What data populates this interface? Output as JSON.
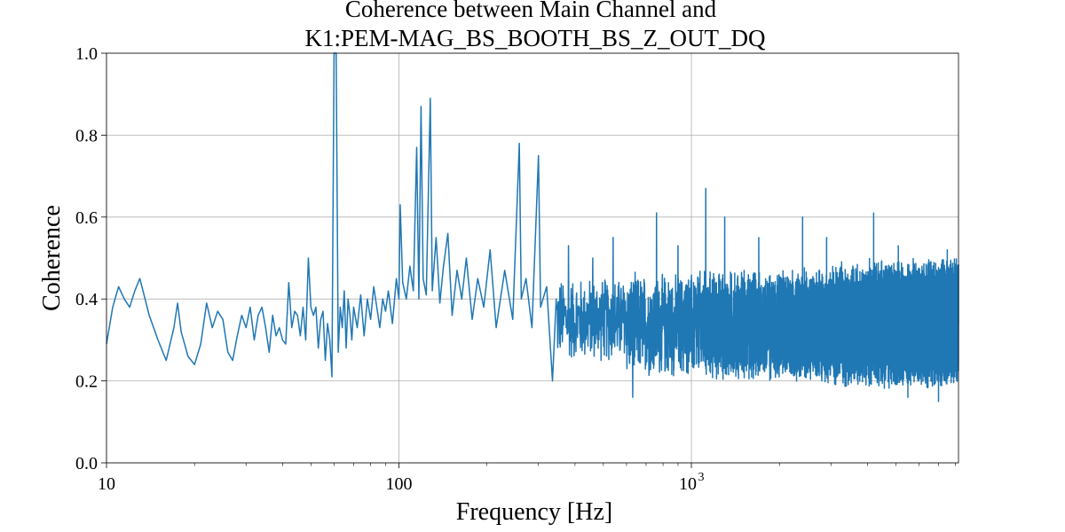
{
  "chart_data": {
    "type": "line",
    "title": [
      "Coherence between Main Channel and",
      "K1:PEM-MAG_BS_BOOTH_BS_Z_OUT_DQ"
    ],
    "xlabel": "Frequency [Hz]",
    "ylabel": "Coherence",
    "xscale": "log",
    "xlim": [
      10,
      8192
    ],
    "ylim": [
      0.0,
      1.0
    ],
    "grid": true,
    "xticks": [
      {
        "value": 10,
        "label": "10"
      },
      {
        "value": 100,
        "label": "100"
      },
      {
        "value": 1000,
        "label": "10",
        "exp": "3"
      }
    ],
    "yticks": [
      {
        "value": 0.0,
        "label": "0.0"
      },
      {
        "value": 0.2,
        "label": "0.2"
      },
      {
        "value": 0.4,
        "label": "0.4"
      },
      {
        "value": 0.6,
        "label": "0.6"
      },
      {
        "value": 0.8,
        "label": "0.8"
      },
      {
        "value": 1.0,
        "label": "1.0"
      }
    ],
    "series": [
      {
        "color": "#1f77b4",
        "description": "Coherence vs frequency, sampled at 1 Hz resolution; values estimated from the plot",
        "points": [
          [
            10,
            0.29
          ],
          [
            10.5,
            0.38
          ],
          [
            11,
            0.43
          ],
          [
            11.5,
            0.4
          ],
          [
            12,
            0.38
          ],
          [
            12.5,
            0.42
          ],
          [
            13,
            0.45
          ],
          [
            14,
            0.36
          ],
          [
            15,
            0.3
          ],
          [
            16,
            0.25
          ],
          [
            17,
            0.33
          ],
          [
            17.5,
            0.39
          ],
          [
            18,
            0.32
          ],
          [
            19,
            0.26
          ],
          [
            20,
            0.24
          ],
          [
            21,
            0.29
          ],
          [
            22,
            0.39
          ],
          [
            23,
            0.33
          ],
          [
            24,
            0.37
          ],
          [
            25,
            0.35
          ],
          [
            26,
            0.27
          ],
          [
            27,
            0.25
          ],
          [
            28,
            0.31
          ],
          [
            29,
            0.36
          ],
          [
            30,
            0.33
          ],
          [
            31,
            0.38
          ],
          [
            32,
            0.3
          ],
          [
            33,
            0.36
          ],
          [
            34,
            0.38
          ],
          [
            35,
            0.33
          ],
          [
            36,
            0.27
          ],
          [
            37,
            0.36
          ],
          [
            38,
            0.31
          ],
          [
            39,
            0.33
          ],
          [
            40,
            0.3
          ],
          [
            41,
            0.29
          ],
          [
            42,
            0.44
          ],
          [
            43,
            0.33
          ],
          [
            44,
            0.37
          ],
          [
            45,
            0.36
          ],
          [
            46,
            0.31
          ],
          [
            47,
            0.38
          ],
          [
            48,
            0.3
          ],
          [
            49,
            0.5
          ],
          [
            50,
            0.38
          ],
          [
            51,
            0.36
          ],
          [
            52,
            0.38
          ],
          [
            53,
            0.28
          ],
          [
            54,
            0.35
          ],
          [
            55,
            0.37
          ],
          [
            56,
            0.25
          ],
          [
            57,
            0.34
          ],
          [
            58,
            0.3
          ],
          [
            59,
            0.21
          ],
          [
            60,
            1.0
          ],
          [
            61,
            1.0
          ],
          [
            62,
            0.27
          ],
          [
            63,
            0.38
          ],
          [
            64,
            0.33
          ],
          [
            65,
            0.42
          ],
          [
            66,
            0.28
          ],
          [
            67,
            0.4
          ],
          [
            68,
            0.36
          ],
          [
            69,
            0.3
          ],
          [
            70,
            0.38
          ],
          [
            72,
            0.33
          ],
          [
            74,
            0.41
          ],
          [
            76,
            0.31
          ],
          [
            78,
            0.4
          ],
          [
            80,
            0.35
          ],
          [
            82,
            0.43
          ],
          [
            84,
            0.38
          ],
          [
            86,
            0.33
          ],
          [
            88,
            0.4
          ],
          [
            90,
            0.37
          ],
          [
            92,
            0.42
          ],
          [
            95,
            0.34
          ],
          [
            98,
            0.45
          ],
          [
            100,
            0.4
          ],
          [
            101,
            0.63
          ],
          [
            103,
            0.44
          ],
          [
            106,
            0.4
          ],
          [
            109,
            0.48
          ],
          [
            112,
            0.42
          ],
          [
            115,
            0.77
          ],
          [
            117,
            0.4
          ],
          [
            119,
            0.87
          ],
          [
            121,
            0.45
          ],
          [
            124,
            0.41
          ],
          [
            128,
            0.89
          ],
          [
            130,
            0.42
          ],
          [
            134,
            0.55
          ],
          [
            138,
            0.39
          ],
          [
            142,
            0.48
          ],
          [
            147,
            0.56
          ],
          [
            152,
            0.36
          ],
          [
            158,
            0.47
          ],
          [
            164,
            0.4
          ],
          [
            170,
            0.5
          ],
          [
            178,
            0.35
          ],
          [
            186,
            0.45
          ],
          [
            195,
            0.38
          ],
          [
            205,
            0.52
          ],
          [
            215,
            0.33
          ],
          [
            230,
            0.47
          ],
          [
            245,
            0.35
          ],
          [
            258,
            0.78
          ],
          [
            262,
            0.4
          ],
          [
            272,
            0.45
          ],
          [
            285,
            0.33
          ],
          [
            300,
            0.75
          ],
          [
            305,
            0.38
          ],
          [
            320,
            0.43
          ],
          [
            335,
            0.2
          ],
          [
            345,
            0.4
          ]
        ],
        "dense_band": [
          {
            "from": 345,
            "to": 600,
            "low": 0.24,
            "high": 0.46,
            "spikes": [
              [
                380,
                0.53
              ],
              [
                460,
                0.5
              ],
              [
                540,
                0.55
              ]
            ]
          },
          {
            "from": 600,
            "to": 1000,
            "low": 0.2,
            "high": 0.47,
            "spikes": [
              [
                630,
                0.16
              ],
              [
                760,
                0.61
              ],
              [
                900,
                0.53
              ]
            ]
          },
          {
            "from": 1000,
            "to": 3000,
            "low": 0.19,
            "high": 0.48,
            "spikes": [
              [
                1120,
                0.67
              ],
              [
                1300,
                0.6
              ],
              [
                1700,
                0.55
              ],
              [
                2400,
                0.6
              ],
              [
                2900,
                0.55
              ]
            ]
          },
          {
            "from": 3000,
            "to": 8192,
            "low": 0.18,
            "high": 0.5,
            "spikes": [
              [
                4200,
                0.61
              ],
              [
                5100,
                0.53
              ],
              [
                7500,
                0.52
              ],
              [
                7000,
                0.15
              ],
              [
                5500,
                0.16
              ]
            ]
          }
        ]
      }
    ]
  }
}
